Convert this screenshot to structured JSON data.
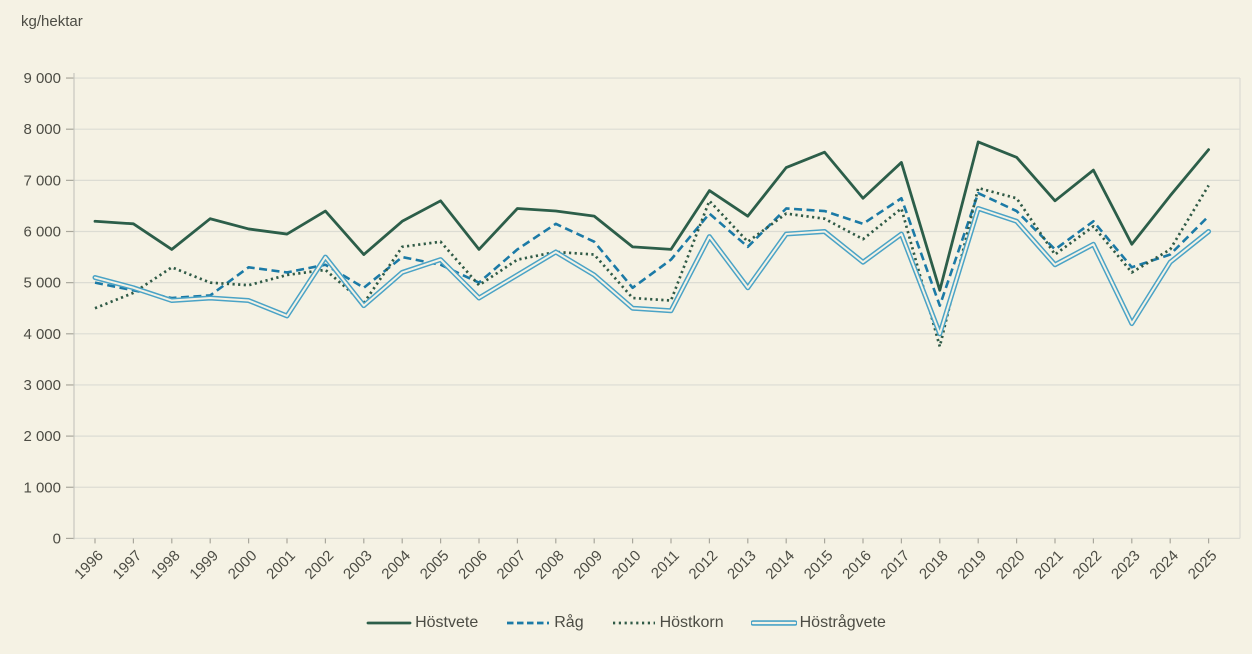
{
  "header": {
    "unit_label": "kg/hektar"
  },
  "chart_data": {
    "type": "line",
    "title": "",
    "ylabel": "kg/hektar",
    "xlabel": "",
    "ylim": [
      0,
      9000
    ],
    "ytick_step": 1000,
    "ytick_labels": [
      "0",
      "1 000",
      "2 000",
      "3 000",
      "4 000",
      "5 000",
      "6 000",
      "7 000",
      "8 000",
      "9 000"
    ],
    "grid": true,
    "legend_position": "bottom",
    "x": [
      "1996",
      "1997",
      "1998",
      "1999",
      "2000",
      "2001",
      "2002",
      "2003",
      "2004",
      "2005",
      "2006",
      "2007",
      "2008",
      "2009",
      "2010",
      "2011",
      "2012",
      "2013",
      "2014",
      "2015",
      "2016",
      "2017",
      "2018",
      "2019",
      "2020",
      "2021",
      "2022",
      "2023",
      "2024",
      "2025"
    ],
    "series": [
      {
        "name": "Höstvete",
        "style": "solid",
        "color": "#2c5e49",
        "values": [
          6200,
          6150,
          5650,
          6250,
          6050,
          5950,
          6400,
          5550,
          6200,
          6600,
          5650,
          6450,
          6400,
          6300,
          5700,
          5650,
          6800,
          6300,
          7250,
          7550,
          6650,
          7350,
          4850,
          7750,
          7450,
          6600,
          7200,
          5750,
          6700,
          7600
        ]
      },
      {
        "name": "Råg",
        "style": "dashed",
        "color": "#1b7aa6",
        "values": [
          5000,
          4850,
          4700,
          4750,
          5300,
          5200,
          5350,
          4900,
          5500,
          5350,
          5000,
          5650,
          6150,
          5800,
          4900,
          5450,
          6350,
          5700,
          6450,
          6400,
          6150,
          6650,
          4550,
          6750,
          6400,
          5650,
          6200,
          5300,
          5550,
          6300
        ]
      },
      {
        "name": "Höstkorn",
        "style": "dotted",
        "color": "#2f5a46",
        "values": [
          4500,
          4800,
          5300,
          5000,
          4950,
          5150,
          5250,
          4600,
          5700,
          5800,
          4950,
          5450,
          5600,
          5550,
          4700,
          4650,
          6600,
          5800,
          6350,
          6250,
          5850,
          6450,
          3750,
          6850,
          6650,
          5550,
          6100,
          5200,
          5650,
          6900
        ]
      },
      {
        "name": "Höstrågvete",
        "style": "double",
        "color": "#4aa3c6",
        "values": [
          5100,
          4900,
          4650,
          4700,
          4650,
          4350,
          5500,
          4550,
          5200,
          5450,
          4700,
          5150,
          5600,
          5150,
          4500,
          4450,
          5900,
          4900,
          5950,
          6000,
          5400,
          5950,
          4000,
          6450,
          6200,
          5350,
          5750,
          4200,
          5400,
          6000
        ]
      }
    ],
    "colors": {
      "background": "#f5f2e4",
      "gridline": "#dcdcd3",
      "axis_line": "#c7c7bf",
      "tick": "#a9a79c",
      "text": "#4c4c44"
    }
  }
}
